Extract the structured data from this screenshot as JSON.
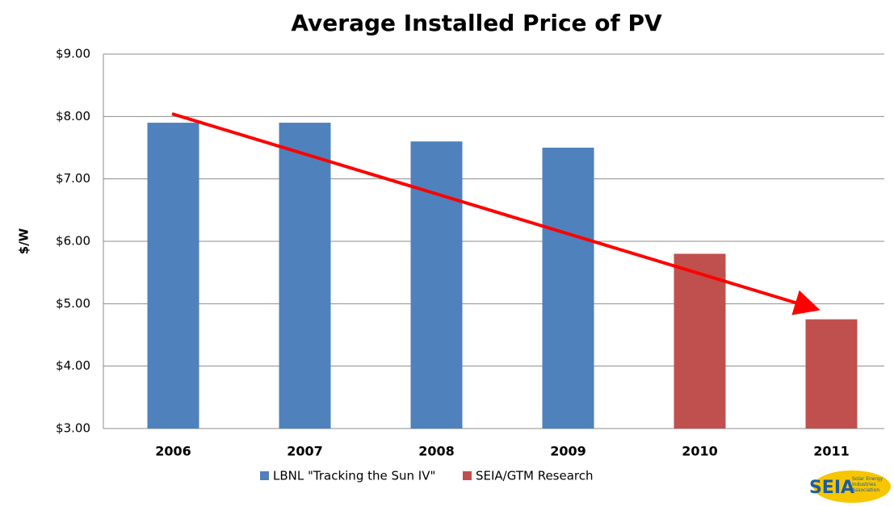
{
  "chart_data": {
    "type": "bar",
    "title": "Average Installed Price of PV",
    "y_label": "$/W",
    "categories": [
      "2006",
      "2007",
      "2008",
      "2009",
      "2010",
      "2011"
    ],
    "series": [
      {
        "name": "LBNL \"Tracking the Sun IV\"",
        "color": "#4f81bd",
        "values": [
          7.9,
          7.9,
          7.6,
          7.5,
          null,
          null
        ]
      },
      {
        "name": "SEIA/GTM Research",
        "color": "#c0504d",
        "values": [
          null,
          null,
          null,
          null,
          5.8,
          4.75
        ]
      }
    ],
    "ylim": [
      3,
      9
    ],
    "yticks": [
      {
        "value": 3,
        "label": "$3.00"
      },
      {
        "value": 4,
        "label": "$4.00"
      },
      {
        "value": 5,
        "label": "$5.00"
      },
      {
        "value": 6,
        "label": "$6.00"
      },
      {
        "value": 7,
        "label": "$7.00"
      },
      {
        "value": 8,
        "label": "$8.00"
      },
      {
        "value": 9,
        "label": "$9.00"
      }
    ],
    "grid": true,
    "legend": "bottom",
    "logo": {
      "text": "SEIA",
      "subtext": "Solar Energy Industries Association"
    }
  }
}
